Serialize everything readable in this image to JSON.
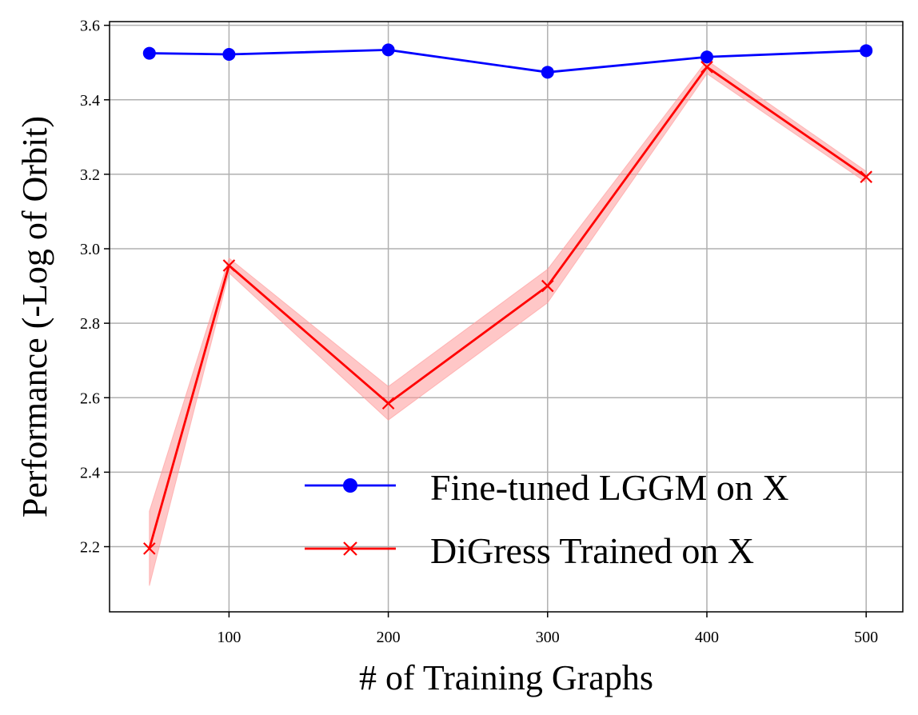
{
  "chart_data": {
    "type": "line",
    "title": "",
    "xlabel": "# of Training Graphs",
    "ylabel": "Performance (-Log of Orbit)",
    "xlim": [
      25,
      523
    ],
    "ylim": [
      2.025,
      3.61
    ],
    "xticks": [
      100,
      200,
      300,
      400,
      500
    ],
    "yticks": [
      2.2,
      2.4,
      2.6,
      2.8,
      3.0,
      3.2,
      3.4,
      3.6
    ],
    "grid": true,
    "legend_position": "lower-right",
    "series": [
      {
        "name": "Fine-tuned LGGM on X",
        "color": "#0000ff",
        "marker": "circle",
        "x": [
          50,
          100,
          200,
          300,
          400,
          500
        ],
        "y": [
          3.525,
          3.522,
          3.534,
          3.474,
          3.515,
          3.532
        ]
      },
      {
        "name": "DiGress Trained on X",
        "color": "#ff0000",
        "marker": "x",
        "x": [
          50,
          100,
          200,
          300,
          400,
          500
        ],
        "y": [
          2.195,
          2.955,
          2.585,
          2.9,
          3.488,
          3.193
        ],
        "band_lower": [
          2.095,
          2.935,
          2.54,
          2.855,
          3.47,
          3.178
        ],
        "band_upper": [
          2.295,
          2.975,
          2.63,
          2.945,
          3.506,
          3.208
        ],
        "band_color": "#ff9999"
      }
    ]
  }
}
